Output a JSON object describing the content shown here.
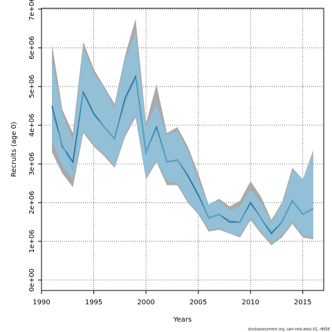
{
  "chart_data": {
    "type": "band-line",
    "x_label": "Years",
    "y_label": "Recruits (age 0)",
    "footnote": "stockassessment.org, sam-tmb-wbss-01, r8656",
    "x": [
      1991,
      1992,
      1993,
      1994,
      1995,
      1996,
      1997,
      1998,
      1999,
      2000,
      2001,
      2002,
      2003,
      2004,
      2005,
      2006,
      2007,
      2008,
      2009,
      2010,
      2011,
      2012,
      2013,
      2014,
      2015,
      2016
    ],
    "xlim": [
      1990,
      2017
    ],
    "xticks": [
      1990,
      1995,
      2000,
      2005,
      2010,
      2015
    ],
    "ylim": [
      -270000,
      7020000
    ],
    "yticks": [
      {
        "value": 0,
        "label": "0e+00"
      },
      {
        "value": 1000000,
        "label": "1e+06"
      },
      {
        "value": 2000000,
        "label": "2e+06"
      },
      {
        "value": 3000000,
        "label": "3e+06"
      },
      {
        "value": 4000000,
        "label": "4e+06"
      },
      {
        "value": 5000000,
        "label": "5e+06"
      },
      {
        "value": 6000000,
        "label": "6e+06"
      },
      {
        "value": 7000000,
        "label": "7e+06"
      }
    ],
    "grid": true,
    "series": [
      {
        "color": "#3d6f8c",
        "band_color": "#a9a9a9",
        "values": [
          4500000,
          3450000,
          3050000,
          4850000,
          4300000,
          3950000,
          3650000,
          4700000,
          5250000,
          3300000,
          3950000,
          3050000,
          3100000,
          2700000,
          2200000,
          1600000,
          1700000,
          1500000,
          1500000,
          2000000,
          1600000,
          1200000,
          1500000,
          2050000,
          1700000,
          1850000
        ],
        "upper": [
          6100000,
          4400000,
          3800000,
          6150000,
          5450000,
          5000000,
          4550000,
          5800000,
          6750000,
          4050000,
          5050000,
          3800000,
          3950000,
          3450000,
          2750000,
          1950000,
          2100000,
          1900000,
          2050000,
          2550000,
          2150000,
          1550000,
          2000000,
          2900000,
          2600000,
          3350000
        ],
        "lower": [
          3300000,
          2750000,
          2400000,
          3800000,
          3450000,
          3200000,
          2900000,
          3700000,
          4200000,
          2600000,
          3050000,
          2450000,
          2450000,
          2000000,
          1700000,
          1250000,
          1300000,
          1200000,
          1100000,
          1550000,
          1200000,
          900000,
          1100000,
          1450000,
          1100000,
          1050000
        ]
      },
      {
        "color": "#5bb8e8",
        "band_color": "#8fc3df",
        "values": [
          4300000,
          3500000,
          2850000,
          4800000,
          4250000,
          3950000,
          3650000,
          4600000,
          5200000,
          3300000,
          3900000,
          3050000,
          3100000,
          2650000,
          2150000,
          1600000,
          1700000,
          1550000,
          1500000,
          1950000,
          1600000,
          1250000,
          1500000,
          2050000,
          1700000,
          1850000
        ],
        "upper": [
          5700000,
          4300000,
          3600000,
          6000000,
          5350000,
          4950000,
          4450000,
          5700000,
          6400000,
          3950000,
          4550000,
          3750000,
          3850000,
          3350000,
          2600000,
          1950000,
          2050000,
          1800000,
          1900000,
          2350000,
          2000000,
          1500000,
          1950000,
          2850000,
          2600000,
          3300000
        ],
        "lower": [
          3600000,
          2950000,
          2600000,
          3850000,
          3500000,
          3250000,
          2950000,
          3750000,
          4250000,
          2650000,
          3100000,
          2550000,
          2500000,
          2050000,
          1750000,
          1300000,
          1350000,
          1200000,
          1150000,
          1600000,
          1250000,
          950000,
          1150000,
          1500000,
          1150000,
          1100000
        ]
      }
    ]
  }
}
